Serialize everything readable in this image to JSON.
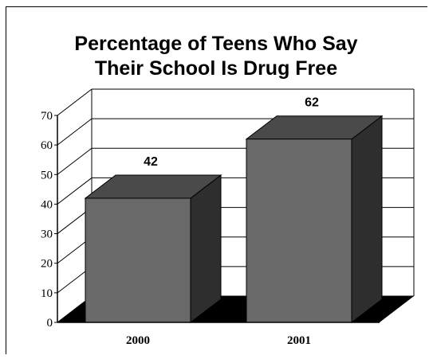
{
  "chart_data": {
    "type": "bar",
    "title_lines": [
      "Percentage of Teens Who Say",
      "Their School Is Drug Free"
    ],
    "categories": [
      "2000",
      "2001"
    ],
    "values": [
      42,
      62
    ],
    "data_labels": [
      "42",
      "62"
    ],
    "y_ticks": [
      "0",
      "10",
      "20",
      "30",
      "40",
      "50",
      "60",
      "70"
    ],
    "ylim": [
      0,
      70
    ],
    "grid": true,
    "style": "3d",
    "colors": {
      "bar_front": "#696969",
      "bar_top": "#4a4a4a",
      "bar_side": "#2e2e2e",
      "floor": "#000000"
    }
  }
}
